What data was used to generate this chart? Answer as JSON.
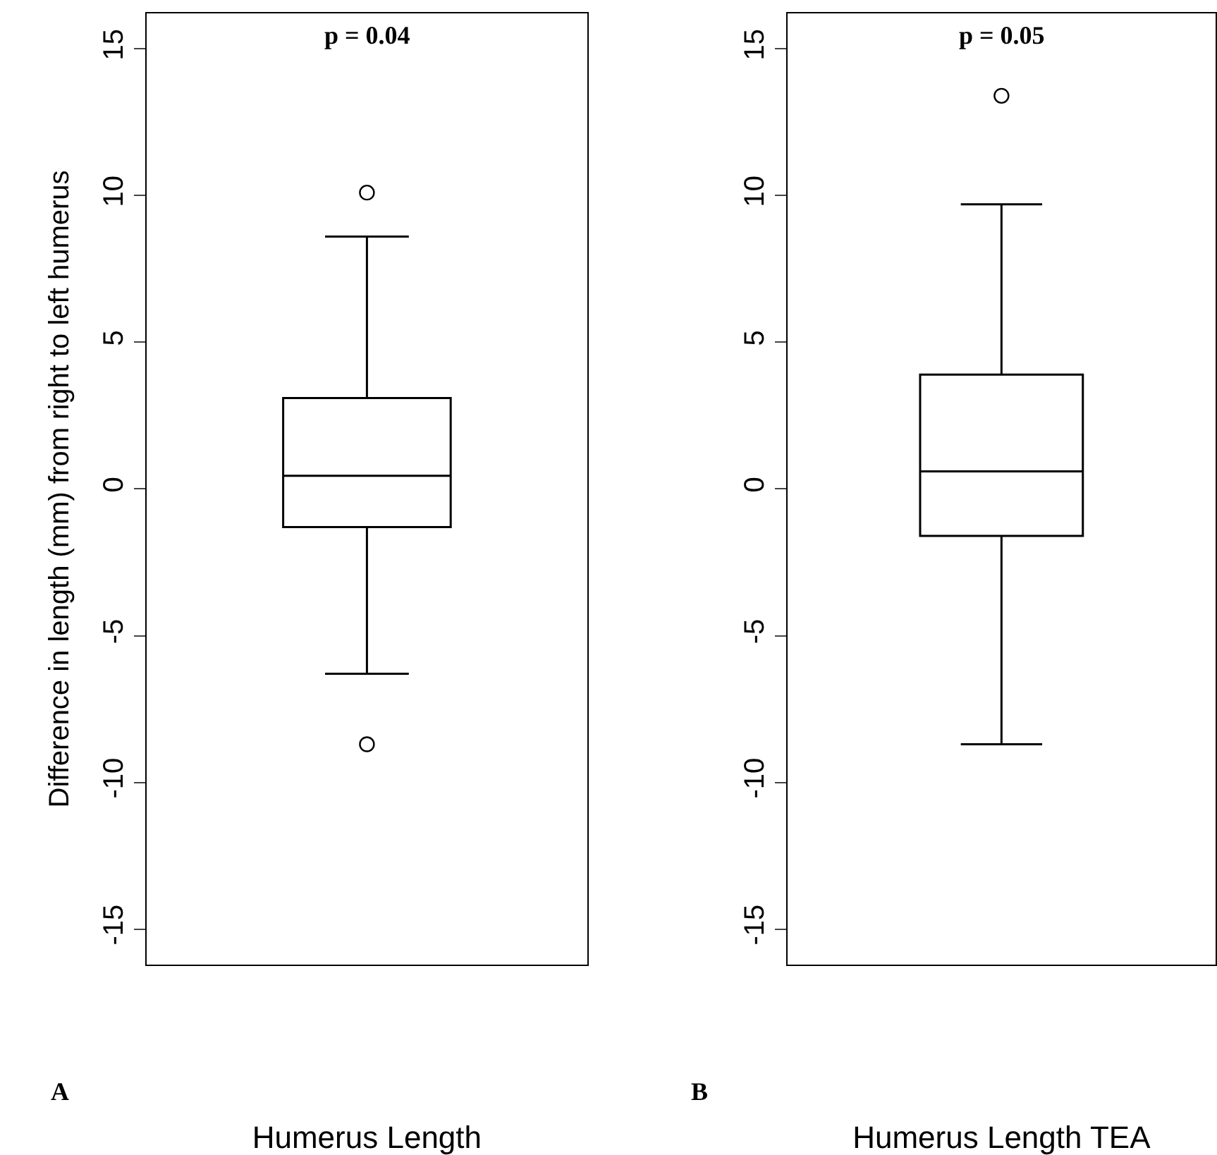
{
  "chart_data": [
    {
      "type": "box",
      "categories": [
        null
      ],
      "xlabel": "Humerus Length",
      "ylabel": "Difference in length (mm) from right to left humerus",
      "ylim": [
        -16.2,
        16.2
      ],
      "yticks": [
        -15,
        -10,
        -5,
        0,
        5,
        10,
        15
      ],
      "tick_labels": "y",
      "boxes": [
        {
          "low": -6.3,
          "q1": -1.3,
          "median": 0.45,
          "q3": 3.1,
          "high": 8.6,
          "outliers": [
            10.1,
            -8.7
          ]
        }
      ],
      "annotations": [
        "p = 0.04",
        "A"
      ]
    },
    {
      "type": "box",
      "categories": [
        null
      ],
      "xlabel": "Humerus Length TEA",
      "ylim": [
        -16.2,
        16.2
      ],
      "yticks": [
        -15,
        -10,
        -5,
        0,
        5,
        10,
        15
      ],
      "tick_labels": "y",
      "boxes": [
        {
          "low": -8.7,
          "q1": -1.6,
          "median": 0.6,
          "q3": 3.9,
          "high": 9.7,
          "outliers": [
            13.4
          ]
        }
      ],
      "annotations": [
        "p = 0.05",
        "B"
      ]
    }
  ]
}
